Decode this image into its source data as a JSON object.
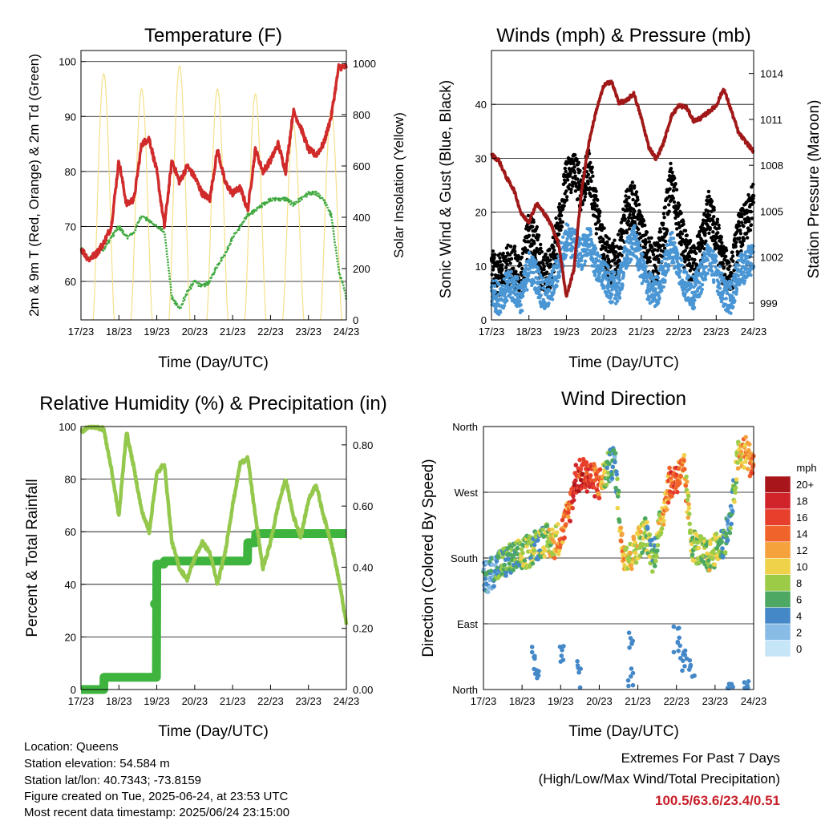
{
  "x_ticks": [
    "17/23",
    "18/23",
    "19/23",
    "20/23",
    "21/23",
    "22/23",
    "23/23",
    "24/23"
  ],
  "temperature": {
    "title": "Temperature (F)",
    "xlabel": "Time (Day/UTC)",
    "ylabel_left": "2m & 9m T (Red, Orange) & 2m Td (Green)",
    "ylabel_right": "Solar Insolation (Yellow)",
    "left_ticks": [
      "60",
      "70",
      "80",
      "90",
      "100"
    ],
    "right_ticks": [
      "0",
      "200",
      "400",
      "600",
      "800",
      "1000"
    ]
  },
  "winds": {
    "title": "Winds (mph) & Pressure (mb)",
    "xlabel": "Time (Day/UTC)",
    "ylabel_left": "Sonic Wind & Gust (Blue, Black)",
    "ylabel_right": "Station Pressure (Maroon)",
    "left_ticks": [
      "0",
      "10",
      "20",
      "30",
      "40"
    ],
    "right_ticks": [
      "999",
      "1002",
      "1005",
      "1008",
      "1011",
      "1014"
    ]
  },
  "humidity": {
    "title": "Relative Humidity (%) & Precipitation (in)",
    "xlabel": "Time (Day/UTC)",
    "ylabel_left": "Percent & Total Rainfall",
    "left_ticks": [
      "0",
      "20",
      "40",
      "60",
      "80",
      "100"
    ],
    "right_ticks": [
      "0.00",
      "0.20",
      "0.40",
      "0.60",
      "0.80"
    ]
  },
  "direction": {
    "title": "Wind Direction",
    "xlabel": "Time (Day/UTC)",
    "ylabel_left": "Direction (Colored By Speed)",
    "dir_ticks": [
      "North",
      "East",
      "South",
      "West",
      "North"
    ],
    "colorbar_title": "mph",
    "colorbar_labels": [
      "20+",
      "18",
      "16",
      "14",
      "12",
      "10",
      "8",
      "6",
      "4",
      "2",
      "0"
    ],
    "colorbar_colors": [
      "#a8161c",
      "#d0242a",
      "#e6402c",
      "#f0642c",
      "#f5a23c",
      "#f0d24a",
      "#9ccb48",
      "#4ca862",
      "#4488c8",
      "#88bce6",
      "#c6e6f8"
    ]
  },
  "info": {
    "location": "Location: Queens",
    "elevation": "Station elevation: 54.584 m",
    "latlon": "Station lat/lon: 40.7343; -73.8159",
    "created": "Figure created on Tue, 2025-06-24, at 23:53 UTC",
    "recent": "Most recent data timestamp: 2025/06/24 23:15:00"
  },
  "extremes": {
    "line1": "Extremes For Past 7 Days",
    "line2": "(High/Low/Max Wind/Total Precipitation)",
    "values": "100.5/63.6/23.4/0.51"
  },
  "chart_data": [
    {
      "type": "line",
      "title": "Temperature (F)",
      "xlabel": "Time (Day/UTC)",
      "ylabel": "2m & 9m T (Red, Orange) & 2m Td (Green)",
      "y2label": "Solar Insolation (Yellow)",
      "ylim": [
        53,
        102
      ],
      "y2lim": [
        0,
        1050
      ],
      "x": [
        0,
        0.2,
        0.4,
        0.6,
        0.8,
        1.0,
        1.2,
        1.4,
        1.6,
        1.8,
        2.0,
        2.2,
        2.4,
        2.6,
        2.8,
        3.0,
        3.2,
        3.4,
        3.6,
        3.8,
        4.0,
        4.2,
        4.4,
        4.6,
        4.8,
        5.0,
        5.2,
        5.4,
        5.6,
        5.8,
        6.0,
        6.2,
        6.4,
        6.6,
        6.8,
        7.0
      ],
      "series": [
        {
          "name": "2m T",
          "color": "#d02a2a",
          "values": [
            66,
            64,
            65,
            67,
            70,
            82,
            74,
            75,
            85,
            86,
            80,
            70,
            82,
            78,
            81,
            79,
            76,
            75,
            84,
            78,
            76,
            77,
            73,
            84,
            80,
            82,
            85,
            80,
            91,
            88,
            84,
            83,
            85,
            90,
            99,
            99
          ]
        },
        {
          "name": "2m Td",
          "color": "#3ea83e",
          "values": [
            66,
            64,
            65,
            66,
            68,
            70,
            68,
            69,
            72,
            71,
            70,
            69,
            57,
            55,
            58,
            60,
            59,
            60,
            63,
            65,
            68,
            70,
            72,
            73,
            74,
            75,
            75,
            75,
            74,
            75,
            76,
            76,
            75,
            72,
            62,
            57
          ]
        },
        {
          "name": "Solar Insolation",
          "color": "#f5e08a",
          "axis": "right",
          "peaks_x": [
            0.6,
            1.6,
            2.6,
            3.6,
            4.6,
            5.6,
            6.6
          ],
          "peaks": [
            960,
            900,
            990,
            900,
            880,
            760,
            820
          ]
        }
      ]
    },
    {
      "type": "scatter",
      "title": "Winds (mph) & Pressure (mb)",
      "xlabel": "Time (Day/UTC)",
      "ylabel": "Sonic Wind & Gust (Blue, Black)",
      "y2label": "Station Pressure (Maroon)",
      "ylim": [
        0,
        50
      ],
      "y2lim": [
        997.9,
        1015.5
      ],
      "x": [
        0,
        0.2,
        0.4,
        0.6,
        0.8,
        1.0,
        1.2,
        1.4,
        1.6,
        1.8,
        2.0,
        2.2,
        2.4,
        2.6,
        2.8,
        3.0,
        3.2,
        3.4,
        3.6,
        3.8,
        4.0,
        4.2,
        4.4,
        4.6,
        4.8,
        5.0,
        5.2,
        5.4,
        5.6,
        5.8,
        6.0,
        6.2,
        6.4,
        6.6,
        6.8,
        7.0
      ],
      "series": [
        {
          "name": "Wind",
          "color": "#4a96d4",
          "values": [
            5,
            4,
            6,
            6,
            4,
            10,
            8,
            4,
            6,
            10,
            15,
            14,
            12,
            15,
            10,
            8,
            6,
            6,
            12,
            15,
            10,
            6,
            5,
            9,
            14,
            10,
            6,
            5,
            8,
            12,
            9,
            5,
            4,
            9,
            10,
            12
          ]
        },
        {
          "name": "Gust",
          "color": "#000000",
          "values": [
            9,
            8,
            10,
            10,
            8,
            16,
            14,
            8,
            10,
            18,
            26,
            28,
            24,
            28,
            20,
            14,
            10,
            12,
            20,
            22,
            16,
            12,
            10,
            16,
            26,
            18,
            12,
            10,
            14,
            20,
            16,
            10,
            8,
            16,
            18,
            22
          ]
        },
        {
          "name": "Station Pressure",
          "color": "#a01818",
          "axis": "right",
          "values": [
            1008.7,
            1008.3,
            1007.2,
            1006.4,
            1004.8,
            1004.3,
            1005.5,
            1004.9,
            1004.1,
            1002.8,
            999.4,
            1001.2,
            1006.2,
            1009.5,
            1011.6,
            1013.2,
            1013.5,
            1012.1,
            1012.2,
            1012.7,
            1011.1,
            1009.2,
            1008.4,
            1009.5,
            1011.2,
            1011.9,
            1011.8,
            1010.9,
            1011.1,
            1011.5,
            1011.9,
            1013.0,
            1011.6,
            1010.1,
            1009.5,
            1008.9
          ]
        }
      ]
    },
    {
      "type": "line",
      "title": "Relative Humidity (%) & Precipitation (in)",
      "xlabel": "Time (Day/UTC)",
      "ylabel": "Percent & Total Rainfall",
      "ylim": [
        0,
        100
      ],
      "y2lim": [
        0,
        0.86
      ],
      "x": [
        0,
        0.2,
        0.4,
        0.6,
        0.8,
        1.0,
        1.2,
        1.4,
        1.6,
        1.8,
        2.0,
        2.2,
        2.4,
        2.6,
        2.8,
        3.0,
        3.2,
        3.4,
        3.6,
        3.8,
        4.0,
        4.2,
        4.4,
        4.6,
        4.8,
        5.0,
        5.2,
        5.4,
        5.6,
        5.8,
        6.0,
        6.2,
        6.4,
        6.6,
        6.8,
        7.0
      ],
      "series": [
        {
          "name": "Relative Humidity",
          "color": "#94c84c",
          "values": [
            98,
            100,
            100,
            99,
            84,
            66,
            98,
            84,
            68,
            60,
            82,
            86,
            56,
            46,
            42,
            50,
            56,
            52,
            40,
            52,
            70,
            86,
            88,
            66,
            46,
            56,
            70,
            80,
            66,
            58,
            72,
            78,
            66,
            56,
            42,
            25
          ]
        },
        {
          "name": "Total Precipitation",
          "color": "#3eb43e",
          "axis": "right",
          "values": [
            0.0,
            0.0,
            0.0,
            0.04,
            0.04,
            0.04,
            0.04,
            0.04,
            0.04,
            0.04,
            0.41,
            0.42,
            0.42,
            0.42,
            0.42,
            0.42,
            0.42,
            0.42,
            0.42,
            0.42,
            0.42,
            0.42,
            0.48,
            0.51,
            0.51,
            0.51,
            0.51,
            0.51,
            0.51,
            0.51,
            0.51,
            0.51,
            0.51,
            0.51,
            0.51,
            0.51
          ]
        }
      ]
    },
    {
      "type": "scatter",
      "title": "Wind Direction",
      "xlabel": "Time (Day/UTC)",
      "ylabel": "Direction (Colored By Speed)",
      "ylim": [
        0,
        360
      ],
      "x": [
        0,
        0.2,
        0.4,
        0.6,
        0.8,
        1.0,
        1.2,
        1.4,
        1.6,
        1.8,
        2.0,
        2.2,
        2.4,
        2.6,
        2.8,
        3.0,
        3.2,
        3.4,
        3.6,
        3.8,
        4.0,
        4.2,
        4.4,
        4.6,
        4.8,
        5.0,
        5.2,
        5.4,
        5.6,
        5.8,
        6.0,
        6.2,
        6.4,
        6.6,
        6.8,
        7.0
      ],
      "series": [
        {
          "name": "Direction",
          "values": [
            150,
            160,
            170,
            175,
            180,
            185,
            190,
            200,
            205,
            200,
            210,
            240,
            290,
            295,
            290,
            280,
            300,
            315,
            190,
            180,
            200,
            215,
            180,
            230,
            280,
            290,
            300,
            200,
            190,
            180,
            190,
            200,
            230,
            320,
            325,
            305
          ],
          "speeds": [
            4,
            4,
            5,
            6,
            6,
            8,
            8,
            6,
            8,
            10,
            12,
            14,
            17,
            18,
            16,
            14,
            6,
            4,
            12,
            10,
            10,
            8,
            6,
            10,
            14,
            16,
            12,
            8,
            8,
            8,
            10,
            6,
            4,
            10,
            12,
            14
          ]
        }
      ]
    }
  ]
}
